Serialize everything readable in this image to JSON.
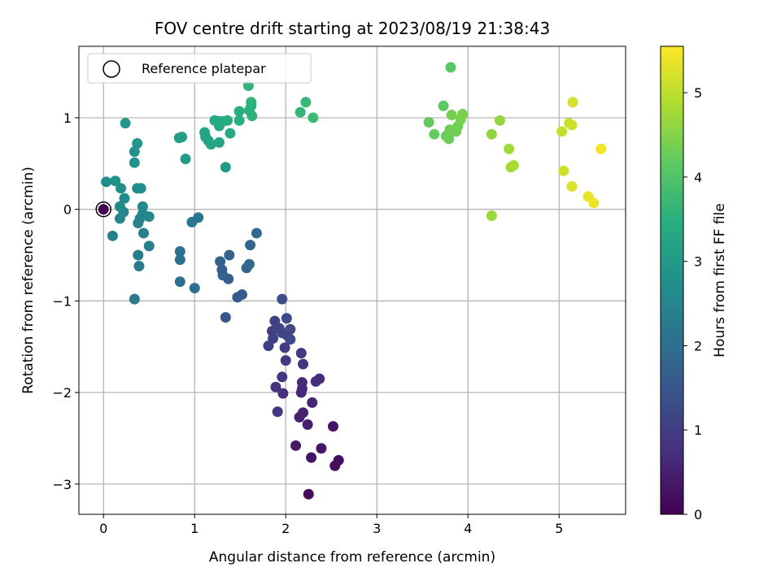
{
  "chart_data": {
    "type": "scatter",
    "title": "FOV centre drift starting at 2023/08/19 21:38:43",
    "xlabel": "Angular distance from reference (arcmin)",
    "ylabel": "Rotation from reference (arcmin)",
    "xlim": [
      -0.27,
      5.73
    ],
    "ylim": [
      -3.33,
      1.78
    ],
    "xticks": [
      0,
      1,
      2,
      3,
      4,
      5
    ],
    "yticks": [
      -3,
      -2,
      -1,
      0,
      1
    ],
    "grid": true,
    "legend": {
      "placement": "top-left",
      "entries": [
        "Reference platepar"
      ]
    },
    "colorbar": {
      "label": "Hours from first FF file",
      "min": 0,
      "max": 5.55,
      "ticks": [
        0,
        1,
        2,
        3,
        4,
        5
      ],
      "colormap": "viridis"
    },
    "reference_point": {
      "x": 0,
      "y": 0,
      "c": 0
    },
    "points": [
      {
        "x": 2.25,
        "y": -3.11,
        "c": 0.15
      },
      {
        "x": 2.54,
        "y": -2.8,
        "c": 0.2
      },
      {
        "x": 2.58,
        "y": -2.74,
        "c": 0.22
      },
      {
        "x": 2.28,
        "y": -2.71,
        "c": 0.28
      },
      {
        "x": 2.52,
        "y": -2.37,
        "c": 0.3
      },
      {
        "x": 2.39,
        "y": -2.61,
        "c": 0.33
      },
      {
        "x": 2.11,
        "y": -2.58,
        "c": 0.38
      },
      {
        "x": 2.24,
        "y": -2.35,
        "c": 0.45
      },
      {
        "x": 2.15,
        "y": -2.27,
        "c": 0.48
      },
      {
        "x": 2.19,
        "y": -2.22,
        "c": 0.52
      },
      {
        "x": 2.29,
        "y": -2.11,
        "c": 0.55
      },
      {
        "x": 2.17,
        "y": -2.0,
        "c": 0.6
      },
      {
        "x": 2.18,
        "y": -1.96,
        "c": 0.62
      },
      {
        "x": 2.18,
        "y": -1.89,
        "c": 0.65
      },
      {
        "x": 2.33,
        "y": -1.88,
        "c": 0.7
      },
      {
        "x": 2.37,
        "y": -1.85,
        "c": 0.72
      },
      {
        "x": 1.97,
        "y": -2.01,
        "c": 0.75
      },
      {
        "x": 1.89,
        "y": -1.94,
        "c": 0.8
      },
      {
        "x": 1.91,
        "y": -2.21,
        "c": 0.85
      },
      {
        "x": 1.96,
        "y": -1.83,
        "c": 0.88
      },
      {
        "x": 2.19,
        "y": -1.69,
        "c": 0.9
      },
      {
        "x": 2.17,
        "y": -1.57,
        "c": 0.92
      },
      {
        "x": 2.0,
        "y": -1.65,
        "c": 0.95
      },
      {
        "x": 1.99,
        "y": -1.51,
        "c": 0.98
      },
      {
        "x": 1.81,
        "y": -1.49,
        "c": 1.0
      },
      {
        "x": 1.86,
        "y": -1.41,
        "c": 1.02
      },
      {
        "x": 1.85,
        "y": -1.33,
        "c": 1.05
      },
      {
        "x": 1.88,
        "y": -1.22,
        "c": 1.08
      },
      {
        "x": 1.93,
        "y": -1.3,
        "c": 1.1
      },
      {
        "x": 1.96,
        "y": -1.35,
        "c": 1.12
      },
      {
        "x": 2.02,
        "y": -1.38,
        "c": 1.15
      },
      {
        "x": 2.05,
        "y": -1.31,
        "c": 1.18
      },
      {
        "x": 2.05,
        "y": -1.42,
        "c": 1.2
      },
      {
        "x": 2.01,
        "y": -1.19,
        "c": 1.22
      },
      {
        "x": 1.96,
        "y": -0.98,
        "c": 1.25
      },
      {
        "x": 1.34,
        "y": -1.18,
        "c": 1.45
      },
      {
        "x": 1.47,
        "y": -0.96,
        "c": 1.55
      },
      {
        "x": 1.52,
        "y": -0.93,
        "c": 1.6
      },
      {
        "x": 1.37,
        "y": -0.76,
        "c": 1.65
      },
      {
        "x": 1.31,
        "y": -0.72,
        "c": 1.7
      },
      {
        "x": 1.3,
        "y": -0.66,
        "c": 1.72
      },
      {
        "x": 1.28,
        "y": -0.57,
        "c": 1.75
      },
      {
        "x": 1.38,
        "y": -0.5,
        "c": 1.78
      },
      {
        "x": 1.57,
        "y": -0.64,
        "c": 1.8
      },
      {
        "x": 1.6,
        "y": -0.6,
        "c": 1.82
      },
      {
        "x": 1.61,
        "y": -0.39,
        "c": 1.85
      },
      {
        "x": 1.68,
        "y": -0.26,
        "c": 1.88
      },
      {
        "x": 0.84,
        "y": -0.79,
        "c": 2.0
      },
      {
        "x": 1.0,
        "y": -0.86,
        "c": 2.02
      },
      {
        "x": 0.84,
        "y": -0.55,
        "c": 2.05
      },
      {
        "x": 0.84,
        "y": -0.46,
        "c": 2.08
      },
      {
        "x": 0.97,
        "y": -0.14,
        "c": 2.15
      },
      {
        "x": 1.04,
        "y": -0.09,
        "c": 2.18
      },
      {
        "x": 0.34,
        "y": -0.98,
        "c": 2.25
      },
      {
        "x": 0.39,
        "y": -0.62,
        "c": 2.28
      },
      {
        "x": 0.38,
        "y": -0.5,
        "c": 2.32
      },
      {
        "x": 0.5,
        "y": -0.4,
        "c": 2.35
      },
      {
        "x": 0.44,
        "y": -0.26,
        "c": 2.38
      },
      {
        "x": 0.1,
        "y": -0.29,
        "c": 2.4
      },
      {
        "x": 0.38,
        "y": -0.15,
        "c": 2.45
      },
      {
        "x": 0.4,
        "y": -0.1,
        "c": 2.48
      },
      {
        "x": 0.18,
        "y": -0.1,
        "c": 2.5
      },
      {
        "x": 0.22,
        "y": -0.03,
        "c": 2.52
      },
      {
        "x": 0.43,
        "y": -0.05,
        "c": 2.55
      },
      {
        "x": 0.5,
        "y": -0.08,
        "c": 2.58
      },
      {
        "x": 0.18,
        "y": 0.03,
        "c": 2.6
      },
      {
        "x": 0.43,
        "y": 0.03,
        "c": 2.62
      },
      {
        "x": 0.23,
        "y": 0.12,
        "c": 2.65
      },
      {
        "x": 0.37,
        "y": 0.23,
        "c": 2.68
      },
      {
        "x": 0.41,
        "y": 0.23,
        "c": 2.7
      },
      {
        "x": 0.19,
        "y": 0.23,
        "c": 2.72
      },
      {
        "x": 0.03,
        "y": 0.3,
        "c": 2.75
      },
      {
        "x": 0.13,
        "y": 0.31,
        "c": 2.78
      },
      {
        "x": 0.34,
        "y": 0.51,
        "c": 2.8
      },
      {
        "x": 0.34,
        "y": 0.63,
        "c": 2.82
      },
      {
        "x": 0.37,
        "y": 0.72,
        "c": 2.85
      },
      {
        "x": 0.24,
        "y": 0.94,
        "c": 2.9
      },
      {
        "x": 1.34,
        "y": 0.46,
        "c": 3.0
      },
      {
        "x": 0.9,
        "y": 0.55,
        "c": 3.05
      },
      {
        "x": 0.83,
        "y": 0.78,
        "c": 3.1
      },
      {
        "x": 0.86,
        "y": 0.79,
        "c": 3.12
      },
      {
        "x": 1.11,
        "y": 0.84,
        "c": 3.15
      },
      {
        "x": 1.12,
        "y": 0.79,
        "c": 3.18
      },
      {
        "x": 1.15,
        "y": 0.75,
        "c": 3.2
      },
      {
        "x": 1.18,
        "y": 0.71,
        "c": 3.22
      },
      {
        "x": 1.27,
        "y": 0.73,
        "c": 3.25
      },
      {
        "x": 1.27,
        "y": 0.91,
        "c": 3.28
      },
      {
        "x": 1.22,
        "y": 0.97,
        "c": 3.3
      },
      {
        "x": 1.27,
        "y": 0.96,
        "c": 3.32
      },
      {
        "x": 1.31,
        "y": 0.96,
        "c": 3.35
      },
      {
        "x": 1.39,
        "y": 0.83,
        "c": 3.38
      },
      {
        "x": 1.36,
        "y": 0.97,
        "c": 3.4
      },
      {
        "x": 1.49,
        "y": 0.97,
        "c": 3.45
      },
      {
        "x": 1.49,
        "y": 1.07,
        "c": 3.48
      },
      {
        "x": 1.6,
        "y": 1.08,
        "c": 3.5
      },
      {
        "x": 1.62,
        "y": 1.13,
        "c": 3.52
      },
      {
        "x": 1.62,
        "y": 1.17,
        "c": 3.55
      },
      {
        "x": 1.63,
        "y": 1.02,
        "c": 3.58
      },
      {
        "x": 1.59,
        "y": 1.35,
        "c": 3.6
      },
      {
        "x": 2.16,
        "y": 1.06,
        "c": 3.65
      },
      {
        "x": 2.22,
        "y": 1.17,
        "c": 3.7
      },
      {
        "x": 2.3,
        "y": 1.0,
        "c": 3.75
      },
      {
        "x": 3.81,
        "y": 1.55,
        "c": 4.1
      },
      {
        "x": 3.73,
        "y": 1.13,
        "c": 4.15
      },
      {
        "x": 3.57,
        "y": 0.95,
        "c": 4.2
      },
      {
        "x": 3.63,
        "y": 0.82,
        "c": 4.22
      },
      {
        "x": 3.76,
        "y": 0.8,
        "c": 4.25
      },
      {
        "x": 3.79,
        "y": 0.77,
        "c": 4.28
      },
      {
        "x": 3.8,
        "y": 0.87,
        "c": 4.3
      },
      {
        "x": 3.87,
        "y": 0.85,
        "c": 4.32
      },
      {
        "x": 3.89,
        "y": 0.91,
        "c": 4.35
      },
      {
        "x": 3.82,
        "y": 1.03,
        "c": 4.38
      },
      {
        "x": 3.92,
        "y": 0.98,
        "c": 4.4
      },
      {
        "x": 3.94,
        "y": 1.04,
        "c": 4.42
      },
      {
        "x": 4.26,
        "y": -0.07,
        "c": 4.7
      },
      {
        "x": 4.26,
        "y": 0.82,
        "c": 4.6
      },
      {
        "x": 4.35,
        "y": 0.97,
        "c": 4.62
      },
      {
        "x": 4.45,
        "y": 0.66,
        "c": 4.75
      },
      {
        "x": 4.47,
        "y": 0.46,
        "c": 4.8
      },
      {
        "x": 4.5,
        "y": 0.48,
        "c": 4.82
      },
      {
        "x": 5.03,
        "y": 0.85,
        "c": 5.05
      },
      {
        "x": 5.11,
        "y": 0.94,
        "c": 5.1
      },
      {
        "x": 5.14,
        "y": 0.92,
        "c": 5.12
      },
      {
        "x": 5.05,
        "y": 0.42,
        "c": 5.15
      },
      {
        "x": 5.15,
        "y": 1.17,
        "c": 5.2
      },
      {
        "x": 5.14,
        "y": 0.25,
        "c": 5.25
      },
      {
        "x": 5.32,
        "y": 0.14,
        "c": 5.35
      },
      {
        "x": 5.38,
        "y": 0.07,
        "c": 5.4
      },
      {
        "x": 5.46,
        "y": 0.66,
        "c": 5.45
      }
    ]
  }
}
